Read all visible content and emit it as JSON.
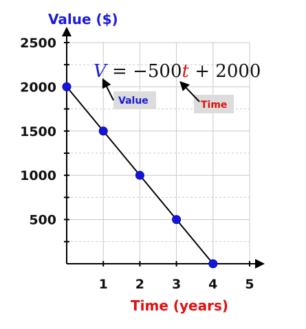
{
  "chart_data": {
    "type": "line",
    "xlabel": "Time (years)",
    "ylabel": "Value ($)",
    "x": [
      0,
      1,
      2,
      3,
      4
    ],
    "y": [
      2000,
      1500,
      1000,
      500,
      0
    ],
    "xlim": [
      0,
      5
    ],
    "ylim": [
      0,
      2500
    ],
    "x_ticks": [
      "1",
      "2",
      "3",
      "4",
      "5"
    ],
    "y_ticks": [
      "500",
      "1000",
      "1500",
      "2000",
      "2500"
    ],
    "grid": true,
    "equation": {
      "var_v": "V",
      "middle": " = −500",
      "var_t": "t",
      "tail": " + 2000"
    },
    "annotations": [
      {
        "text": "Value",
        "color": "#1a1adb"
      },
      {
        "text": "Time",
        "color": "#e01010"
      }
    ],
    "colors": {
      "points": "#1515e0",
      "line": "#000000",
      "ylabel": "#1a1adb",
      "xlabel": "#e01010"
    }
  }
}
